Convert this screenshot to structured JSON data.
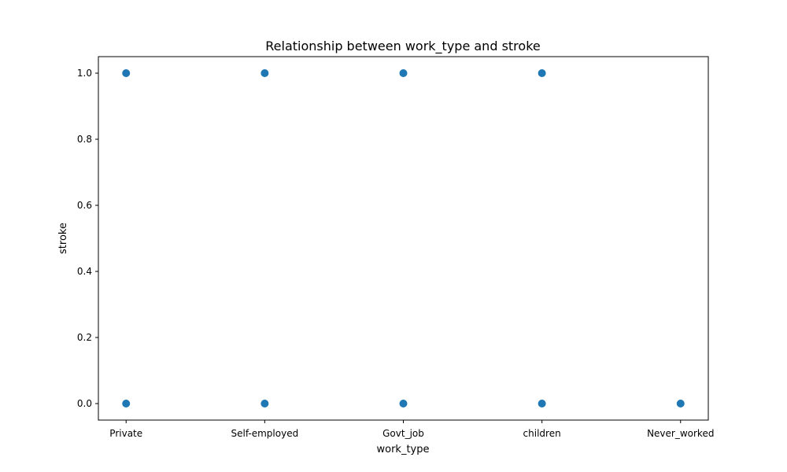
{
  "chart_data": {
    "type": "scatter",
    "title": "Relationship between work_type and stroke",
    "xlabel": "work_type",
    "ylabel": "stroke",
    "categories": [
      "Private",
      "Self-employed",
      "Govt_job",
      "children",
      "Never_worked"
    ],
    "y_ticks": [
      "0.0",
      "0.2",
      "0.4",
      "0.6",
      "0.8",
      "1.0"
    ],
    "ylim": [
      -0.05,
      1.05
    ],
    "grid": false,
    "points": [
      {
        "x": "Private",
        "y": 1
      },
      {
        "x": "Private",
        "y": 0
      },
      {
        "x": "Self-employed",
        "y": 1
      },
      {
        "x": "Self-employed",
        "y": 0
      },
      {
        "x": "Govt_job",
        "y": 1
      },
      {
        "x": "Govt_job",
        "y": 0
      },
      {
        "x": "children",
        "y": 1
      },
      {
        "x": "children",
        "y": 0
      },
      {
        "x": "Never_worked",
        "y": 0
      }
    ],
    "marker_color": "#1f77b4"
  }
}
